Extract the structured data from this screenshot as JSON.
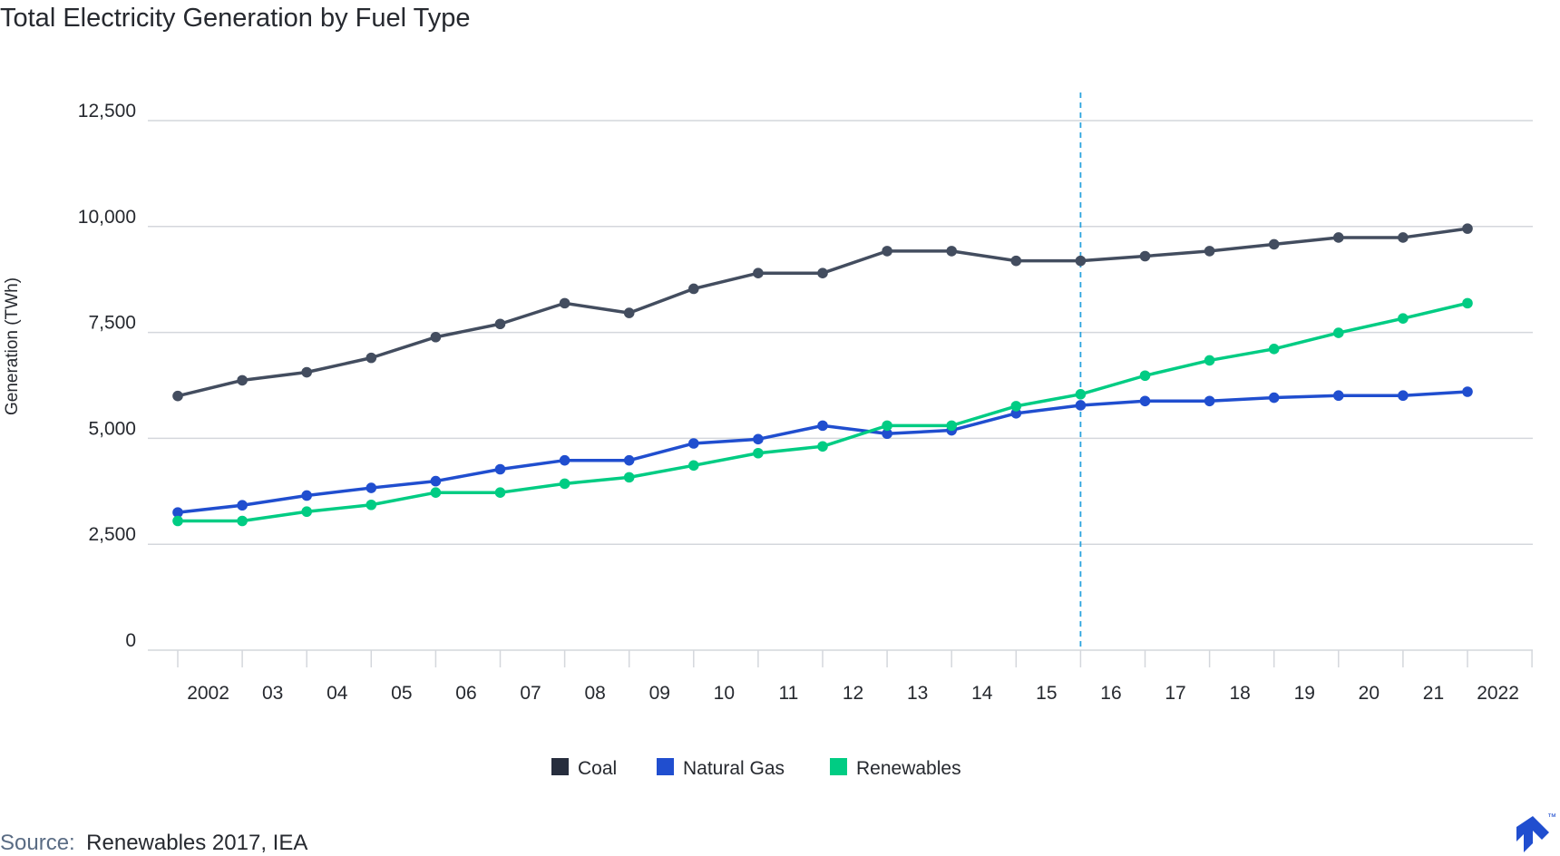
{
  "chart_data": {
    "type": "line",
    "title": "Total Electricity Generation by Fuel Type",
    "ylabel": "Generation (TWh)",
    "xlabel": "",
    "ylim": [
      0,
      12500
    ],
    "yticks": [
      0,
      2500,
      5000,
      7500,
      10000,
      12500
    ],
    "ytick_labels": [
      "0",
      "2,500",
      "5,000",
      "7,500",
      "10,000",
      "12,500"
    ],
    "categories": [
      "2002",
      "03",
      "04",
      "05",
      "06",
      "07",
      "08",
      "09",
      "10",
      "11",
      "12",
      "13",
      "14",
      "15",
      "16",
      "17",
      "18",
      "19",
      "20",
      "21",
      "2022"
    ],
    "grid": "horizontal",
    "legend_position": "bottom",
    "reference_line": {
      "category": "16",
      "style": "dashed"
    },
    "series": [
      {
        "name": "Coal",
        "color": "#434d5f",
        "values": [
          6000,
          6370,
          6560,
          6900,
          7390,
          7700,
          8190,
          7960,
          8530,
          8900,
          8900,
          9420,
          9420,
          9190,
          9190,
          9300,
          9420,
          9580,
          9740,
          9740,
          9950
        ]
      },
      {
        "name": "Natural Gas",
        "color": "#204ecf",
        "values": [
          3250,
          3420,
          3650,
          3830,
          3990,
          4270,
          4480,
          4480,
          4880,
          4980,
          5300,
          5110,
          5190,
          5590,
          5780,
          5880,
          5880,
          5960,
          6010,
          6010,
          6100
        ]
      },
      {
        "name": "Renewables",
        "color": "#00cc83",
        "values": [
          3050,
          3050,
          3270,
          3430,
          3720,
          3720,
          3930,
          4080,
          4360,
          4650,
          4810,
          5300,
          5300,
          5760,
          6040,
          6480,
          6840,
          7110,
          7490,
          7830,
          8190
        ]
      }
    ],
    "legend_swatch_colors": {
      "Coal": "#262d3d",
      "Natural Gas": "#204ecf",
      "Renewables": "#00cc83"
    }
  },
  "source": {
    "label": "Source:",
    "text": "Renewables 2017, IEA"
  },
  "colors": {
    "grid": "#d4d7dc",
    "reference_line": "#2ba3de",
    "text": "#26292f",
    "logo": "#204ecf"
  },
  "logo": {
    "icon": "toptal-logo-icon",
    "mark": "™"
  }
}
